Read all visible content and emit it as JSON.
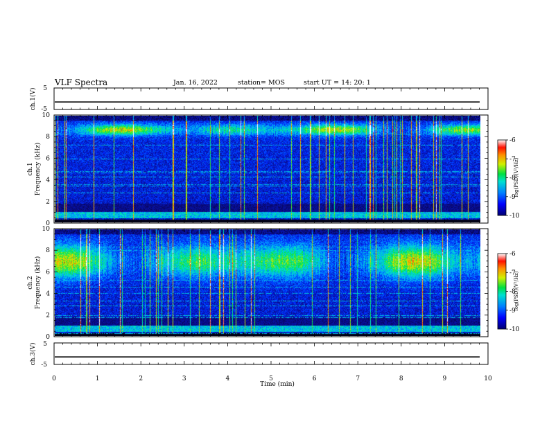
{
  "header": {
    "title": "VLF Spectra",
    "date": "Jan. 16, 2022",
    "station": "station= MOS",
    "start": "start UT =  14: 20: 1"
  },
  "colors": {
    "cmap": [
      "#000000",
      "#0a0a8a",
      "#0033ff",
      "#00a0ff",
      "#00e6c8",
      "#00e04a",
      "#c8f000",
      "#ffb000",
      "#ff2000",
      "#ffffff"
    ]
  },
  "chart_data": [
    {
      "panel": "ch1_waveform",
      "type": "line",
      "ylabel": "ch.1(V)",
      "yticks": [
        "5",
        "-5"
      ],
      "ylim": [
        -5,
        5
      ],
      "xlim": [
        0,
        10
      ],
      "series": [
        {
          "values_description": "flat trace near -1.5 V",
          "level": -1.5
        }
      ]
    },
    {
      "panel": "ch1_spectrogram",
      "type": "heatmap",
      "ylabel": "ch.1",
      "ylabel2": "Frequency (kHz)",
      "yticks": [
        "0",
        "2",
        "4",
        "6",
        "8",
        "10"
      ],
      "ylim": [
        0,
        10
      ],
      "xlim": [
        0,
        9.85
      ],
      "colorbar": {
        "label": "log(PSD)(V²/Hz)",
        "ticks": [
          "-6",
          "-7",
          "-8",
          "-9",
          "-10"
        ],
        "range": [
          -10,
          -6
        ]
      },
      "band_center_khz": 8.7,
      "band_width_khz": 0.5
    },
    {
      "panel": "ch2_spectrogram",
      "type": "heatmap",
      "ylabel": "ch.2",
      "ylabel2": "Frequency (kHz)",
      "yticks": [
        "0",
        "2",
        "4",
        "6",
        "8",
        "10"
      ],
      "ylim": [
        0,
        10
      ],
      "xlim": [
        0,
        9.85
      ],
      "colorbar": {
        "label": "log(PSD)(V²/Hz)",
        "ticks": [
          "-6",
          "-7",
          "-8",
          "-9",
          "-10"
        ],
        "range": [
          -10,
          -6
        ]
      },
      "band_center_khz": 7.0,
      "band_width_khz": 1.5
    },
    {
      "panel": "ch3_waveform",
      "type": "line",
      "ylabel": "ch.3(V)",
      "yticks": [
        "5",
        "-5"
      ],
      "ylim": [
        -5,
        5
      ],
      "xlim": [
        0,
        10
      ],
      "series": [
        {
          "values_description": "flat trace near -1.5 V",
          "level": -1.5
        }
      ]
    }
  ],
  "xaxis": {
    "label": "Time (min)",
    "ticks": [
      "0",
      "1",
      "2",
      "3",
      "4",
      "5",
      "6",
      "7",
      "8",
      "9",
      "10"
    ],
    "range": [
      0,
      10
    ]
  }
}
